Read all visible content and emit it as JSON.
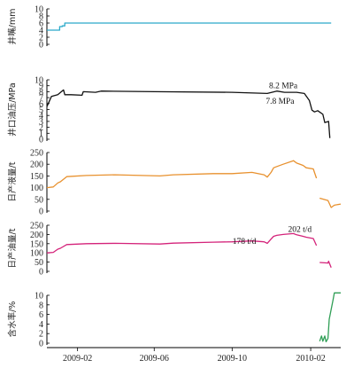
{
  "chart_data": [
    {
      "type": "line",
      "ylabel": "井嘴/mm",
      "ylim": [
        0,
        10
      ],
      "yticks": [
        0,
        2,
        4,
        6,
        8,
        10
      ],
      "color": "#2aa9c9",
      "x": [
        "2008-12-15",
        "2009-01-04",
        "2009-01-04",
        "2009-01-08",
        "2009-01-08",
        "2009-01-12",
        "2009-01-12",
        "2009-01-20",
        "2009-01-20",
        "2010-03-05"
      ],
      "values": [
        4,
        4,
        5,
        5,
        5.2,
        5.2,
        6,
        6,
        6,
        6
      ],
      "annotations": []
    },
    {
      "type": "line",
      "ylabel": "井口油压/MPa",
      "ylim": [
        0,
        10
      ],
      "yticks": [
        0,
        1,
        2,
        3,
        4,
        5,
        6,
        7,
        8,
        9,
        10
      ],
      "color": "#111111",
      "x": [
        "2008-12-15",
        "2008-12-22",
        "2009-01-01",
        "2009-01-10",
        "2009-01-12",
        "2009-01-22",
        "2009-02-08",
        "2009-02-10",
        "2009-03-01",
        "2009-03-10",
        "2009-06-01",
        "2009-10-01",
        "2009-11-25",
        "2009-12-10",
        "2009-12-22",
        "2010-01-10",
        "2010-01-22",
        "2010-01-30",
        "2010-02-03",
        "2010-02-07",
        "2010-02-12",
        "2010-02-20",
        "2010-02-23",
        "2010-03-01",
        "2010-03-03"
      ],
      "values": [
        5.5,
        7.2,
        7.5,
        8.3,
        7.5,
        7.5,
        7.4,
        8.0,
        7.9,
        8.1,
        8.0,
        7.9,
        7.7,
        8.1,
        7.9,
        7.9,
        7.7,
        6.5,
        4.9,
        4.6,
        4.8,
        4.2,
        2.8,
        3.0,
        0.2
      ],
      "annotations": [
        {
          "text": "8.2 MPa",
          "x": "2009-12-20",
          "y": 8.6
        },
        {
          "text": "7.8 MPa",
          "x": "2009-12-15",
          "y": 6.0
        }
      ]
    },
    {
      "type": "line",
      "ylabel": "日产液量/t",
      "ylim": [
        0,
        250
      ],
      "yticks": [
        0,
        50,
        100,
        150,
        200,
        250
      ],
      "color": "#e8912e",
      "x": [
        "2008-12-15",
        "2008-12-25",
        "2009-01-01",
        "2009-01-05",
        "2009-01-15",
        "2009-02-15",
        "2009-04-01",
        "2009-06-10",
        "2009-07-01",
        "2009-09-01",
        "2009-10-01",
        "2009-11-01",
        "2009-11-20",
        "2009-11-25",
        "2009-12-01",
        "2009-12-05",
        "2009-12-10",
        "2009-12-20",
        "2010-01-05",
        "2010-01-10",
        "2010-01-20",
        "2010-01-25",
        "2010-02-05",
        "2010-02-10",
        null,
        "2010-02-15",
        "2010-02-28",
        "2010-03-05",
        "2010-03-10",
        "2010-03-20"
      ],
      "values": [
        100,
        103,
        120,
        125,
        147,
        152,
        155,
        150,
        155,
        160,
        160,
        165,
        155,
        145,
        165,
        185,
        190,
        200,
        215,
        205,
        195,
        185,
        180,
        140,
        null,
        55,
        45,
        15,
        25,
        30
      ],
      "annotations": []
    },
    {
      "type": "line",
      "ylabel": "日产油量/t",
      "ylim": [
        0,
        250
      ],
      "yticks": [
        0,
        50,
        100,
        150,
        200,
        250
      ],
      "color": "#d4237a",
      "x": [
        "2008-12-15",
        "2008-12-25",
        "2009-01-01",
        "2009-01-05",
        "2009-01-15",
        "2009-02-15",
        "2009-04-01",
        "2009-06-10",
        "2009-07-01",
        "2009-09-01",
        "2009-10-01",
        "2009-11-01",
        "2009-11-20",
        "2009-11-25",
        "2009-12-01",
        "2009-12-05",
        "2009-12-10",
        "2009-12-20",
        "2010-01-05",
        "2010-01-10",
        "2010-01-20",
        "2010-01-25",
        "2010-02-05",
        "2010-02-10",
        null,
        "2010-02-15",
        "2010-02-28",
        "2010-03-01",
        "2010-03-05"
      ],
      "values": [
        100,
        103,
        120,
        125,
        145,
        150,
        152,
        148,
        153,
        158,
        160,
        165,
        160,
        152,
        175,
        190,
        195,
        200,
        205,
        198,
        190,
        185,
        178,
        140,
        null,
        48,
        45,
        55,
        20
      ],
      "annotations": [
        {
          "text": "202 t/d",
          "x": "2010-01-15",
          "y": 215
        },
        {
          "text": "178 t/d",
          "x": "2009-10-20",
          "y": 150
        }
      ]
    },
    {
      "type": "line",
      "ylabel": "含水率/%",
      "ylim": [
        0,
        10
      ],
      "yticks": [
        0,
        2,
        4,
        6,
        8,
        10
      ],
      "color": "#2f9e55",
      "x": [
        "2010-02-15",
        "2010-02-18",
        "2010-02-20",
        "2010-02-23",
        "2010-02-25",
        "2010-02-28",
        "2010-03-02",
        "2010-03-08",
        "2010-03-10",
        "2010-03-20"
      ],
      "values": [
        0.4,
        1.5,
        0.4,
        1.5,
        0.3,
        1.0,
        5.0,
        9.0,
        10.5,
        10.5
      ],
      "annotations": []
    }
  ],
  "x_axis": {
    "start": "2008-12-15",
    "end": "2010-03-20",
    "tick_labels": [
      "2009-02",
      "2009-06",
      "2009-10",
      "2010-02"
    ]
  }
}
